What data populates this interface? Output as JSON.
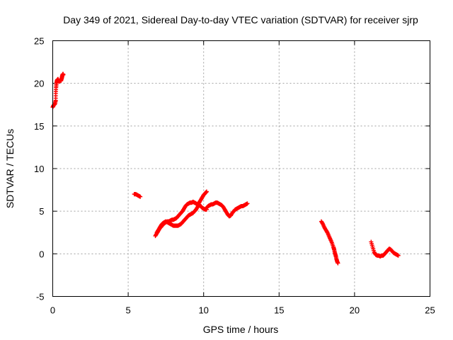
{
  "chart_data": {
    "type": "scatter",
    "title": "Day 349 of 2021, Sidereal Day-to-day VTEC variation (SDTVAR) for receiver sjrp",
    "xlabel": "GPS time / hours",
    "ylabel": "SDTVAR / TECUs",
    "xlim": [
      0,
      25
    ],
    "ylim": [
      -5,
      25
    ],
    "xticks": [
      0,
      5,
      10,
      15,
      20,
      25
    ],
    "yticks": [
      -5,
      0,
      5,
      10,
      15,
      20,
      25
    ],
    "grid": true,
    "marker": "plus",
    "color": "#ff0000",
    "series": [
      {
        "name": "sjrp",
        "segments": [
          {
            "x": [
              0.0,
              0.05,
              0.1,
              0.15,
              0.2,
              0.2,
              0.22,
              0.25,
              0.28,
              0.3,
              0.35,
              0.4,
              0.45,
              0.5,
              0.55,
              0.6,
              0.62,
              0.65,
              0.68,
              0.7
            ],
            "y": [
              17.2,
              17.4,
              17.5,
              17.6,
              18.0,
              18.8,
              19.5,
              20.0,
              20.3,
              20.4,
              20.5,
              20.3,
              20.2,
              20.4,
              20.3,
              20.6,
              20.8,
              21.0,
              21.1,
              21.0
            ]
          },
          {
            "x": [
              5.4,
              5.5,
              5.6,
              5.7,
              5.8
            ],
            "y": [
              7.0,
              7.0,
              6.9,
              6.8,
              6.7
            ]
          },
          {
            "x": [
              6.8,
              6.9,
              7.0,
              7.1,
              7.2,
              7.3,
              7.4,
              7.5,
              7.6,
              7.7,
              7.8,
              7.9,
              8.0,
              8.1,
              8.2,
              8.3,
              8.4,
              8.5,
              8.6,
              8.7,
              8.8,
              8.9,
              9.0,
              9.1,
              9.2,
              9.3,
              9.4,
              9.5,
              9.6,
              9.7,
              9.8,
              9.9,
              10.0,
              10.1,
              10.2
            ],
            "y": [
              2.1,
              2.4,
              2.7,
              3.0,
              3.2,
              3.4,
              3.6,
              3.7,
              3.8,
              3.8,
              3.9,
              4.0,
              4.0,
              4.1,
              4.2,
              4.4,
              4.6,
              4.8,
              5.0,
              5.3,
              5.6,
              5.8,
              5.9,
              6.0,
              6.0,
              6.1,
              6.0,
              5.9,
              5.8,
              6.0,
              6.3,
              6.6,
              6.9,
              7.1,
              7.3
            ]
          },
          {
            "x": [
              6.9,
              7.0,
              7.1,
              7.2,
              7.3,
              7.4,
              7.5,
              7.6,
              7.7,
              7.8,
              7.9,
              8.0,
              8.1,
              8.2,
              8.3,
              8.4,
              8.5,
              8.6,
              8.7,
              8.8,
              8.9,
              9.0,
              9.1,
              9.2,
              9.3,
              9.4,
              9.5,
              9.6,
              9.7,
              9.8,
              9.9,
              10.0,
              10.1,
              10.2
            ],
            "y": [
              2.5,
              2.8,
              3.1,
              3.4,
              3.6,
              3.7,
              3.8,
              3.7,
              3.6,
              3.5,
              3.4,
              3.3,
              3.3,
              3.3,
              3.3,
              3.4,
              3.5,
              3.7,
              3.9,
              4.1,
              4.3,
              4.5,
              4.6,
              4.7,
              4.8,
              5.0,
              5.2,
              5.5,
              5.8,
              5.6,
              5.4,
              5.3,
              5.2,
              5.2
            ]
          },
          {
            "x": [
              10.2,
              10.3,
              10.4,
              10.5,
              10.6,
              10.7,
              10.8,
              10.9,
              11.0,
              11.1,
              11.2,
              11.3,
              11.4,
              11.5,
              11.6,
              11.7,
              11.8,
              11.9,
              12.0,
              12.1,
              12.2,
              12.3,
              12.4,
              12.5,
              12.6,
              12.7,
              12.8,
              12.9
            ],
            "y": [
              5.4,
              5.6,
              5.7,
              5.8,
              5.8,
              5.9,
              6.0,
              6.0,
              5.9,
              5.8,
              5.7,
              5.5,
              5.2,
              4.9,
              4.6,
              4.4,
              4.5,
              4.8,
              5.0,
              5.2,
              5.3,
              5.4,
              5.5,
              5.6,
              5.6,
              5.7,
              5.8,
              5.9
            ]
          },
          {
            "x": [
              17.8,
              17.9,
              18.0,
              18.1,
              18.2,
              18.3,
              18.4,
              18.5,
              18.6,
              18.65,
              18.7,
              18.75,
              18.8,
              18.85,
              18.9
            ],
            "y": [
              3.8,
              3.5,
              3.1,
              2.8,
              2.5,
              2.1,
              1.7,
              1.3,
              0.8,
              0.5,
              0.1,
              -0.2,
              -0.6,
              -0.9,
              -1.1
            ]
          },
          {
            "x": [
              21.1,
              21.2,
              21.3,
              21.4,
              21.5,
              21.6,
              21.7,
              21.8,
              21.9,
              22.0,
              22.1,
              22.2,
              22.3,
              22.4,
              22.5,
              22.6,
              22.7,
              22.8,
              22.9
            ],
            "y": [
              1.4,
              0.8,
              0.2,
              -0.1,
              -0.2,
              -0.2,
              -0.3,
              -0.2,
              -0.2,
              0.0,
              0.2,
              0.4,
              0.6,
              0.5,
              0.3,
              0.1,
              0.0,
              -0.1,
              -0.2
            ]
          }
        ]
      }
    ]
  }
}
